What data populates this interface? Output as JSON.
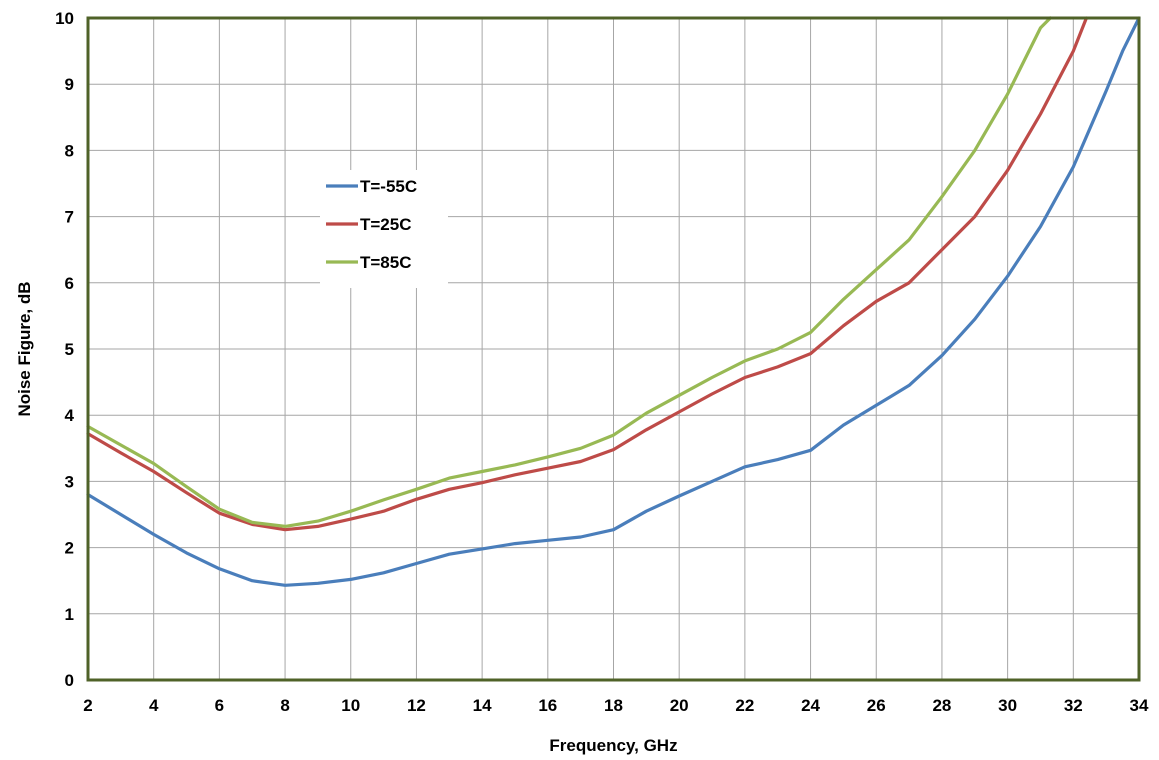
{
  "chart_data": {
    "type": "line",
    "title": "",
    "xlabel": "Frequency, GHz",
    "ylabel": "Noise Figure, dB",
    "xlim": [
      2,
      34
    ],
    "ylim": [
      0,
      10
    ],
    "x_ticks": [
      "2",
      "4",
      "6",
      "8",
      "10",
      "12",
      "14",
      "16",
      "18",
      "20",
      "22",
      "24",
      "26",
      "28",
      "30",
      "32",
      "34"
    ],
    "y_ticks": [
      "0",
      "1",
      "2",
      "3",
      "4",
      "5",
      "6",
      "7",
      "8",
      "9",
      "10"
    ],
    "grid": true,
    "legend_position": "upper-left",
    "series": [
      {
        "name": "T=-55C",
        "color": "#4a7ebb",
        "points": [
          [
            2,
            2.8
          ],
          [
            3,
            2.5
          ],
          [
            4,
            2.2
          ],
          [
            5,
            1.92
          ],
          [
            6,
            1.68
          ],
          [
            7,
            1.5
          ],
          [
            8,
            1.43
          ],
          [
            9,
            1.46
          ],
          [
            10,
            1.52
          ],
          [
            11,
            1.62
          ],
          [
            12,
            1.76
          ],
          [
            13,
            1.9
          ],
          [
            14,
            1.98
          ],
          [
            15,
            2.06
          ],
          [
            16,
            2.11
          ],
          [
            17,
            2.16
          ],
          [
            18,
            2.27
          ],
          [
            19,
            2.55
          ],
          [
            20,
            2.78
          ],
          [
            21,
            3.0
          ],
          [
            22,
            3.22
          ],
          [
            23,
            3.33
          ],
          [
            24,
            3.47
          ],
          [
            25,
            3.85
          ],
          [
            26,
            4.15
          ],
          [
            27,
            4.45
          ],
          [
            28,
            4.9
          ],
          [
            29,
            5.45
          ],
          [
            30,
            6.1
          ],
          [
            31,
            6.85
          ],
          [
            32,
            7.75
          ],
          [
            33,
            8.9
          ],
          [
            33.5,
            9.5
          ],
          [
            34,
            10.0
          ]
        ]
      },
      {
        "name": "T=25C",
        "color": "#be4b48",
        "points": [
          [
            2,
            3.72
          ],
          [
            3,
            3.43
          ],
          [
            4,
            3.15
          ],
          [
            5,
            2.83
          ],
          [
            6,
            2.52
          ],
          [
            7,
            2.35
          ],
          [
            8,
            2.27
          ],
          [
            9,
            2.32
          ],
          [
            10,
            2.43
          ],
          [
            11,
            2.55
          ],
          [
            12,
            2.73
          ],
          [
            13,
            2.88
          ],
          [
            14,
            2.98
          ],
          [
            15,
            3.1
          ],
          [
            16,
            3.2
          ],
          [
            17,
            3.3
          ],
          [
            18,
            3.48
          ],
          [
            19,
            3.78
          ],
          [
            20,
            4.05
          ],
          [
            21,
            4.32
          ],
          [
            22,
            4.57
          ],
          [
            23,
            4.73
          ],
          [
            24,
            4.93
          ],
          [
            25,
            5.35
          ],
          [
            26,
            5.72
          ],
          [
            27,
            6.0
          ],
          [
            28,
            6.5
          ],
          [
            29,
            7.0
          ],
          [
            30,
            7.7
          ],
          [
            31,
            8.55
          ],
          [
            32,
            9.5
          ],
          [
            32.4,
            10.0
          ]
        ]
      },
      {
        "name": "T=85C",
        "color": "#98b954",
        "points": [
          [
            2,
            3.83
          ],
          [
            3,
            3.55
          ],
          [
            4,
            3.27
          ],
          [
            5,
            2.92
          ],
          [
            6,
            2.58
          ],
          [
            7,
            2.38
          ],
          [
            8,
            2.32
          ],
          [
            9,
            2.4
          ],
          [
            10,
            2.55
          ],
          [
            11,
            2.72
          ],
          [
            12,
            2.88
          ],
          [
            13,
            3.05
          ],
          [
            14,
            3.15
          ],
          [
            15,
            3.25
          ],
          [
            16,
            3.37
          ],
          [
            17,
            3.5
          ],
          [
            18,
            3.7
          ],
          [
            19,
            4.03
          ],
          [
            20,
            4.3
          ],
          [
            21,
            4.57
          ],
          [
            22,
            4.82
          ],
          [
            23,
            5.0
          ],
          [
            24,
            5.25
          ],
          [
            25,
            5.75
          ],
          [
            26,
            6.2
          ],
          [
            27,
            6.65
          ],
          [
            28,
            7.3
          ],
          [
            29,
            8.0
          ],
          [
            30,
            8.85
          ],
          [
            30.5,
            9.35
          ],
          [
            31,
            9.85
          ],
          [
            31.3,
            10.0
          ]
        ]
      }
    ]
  }
}
